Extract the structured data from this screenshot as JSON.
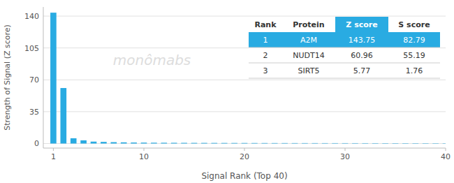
{
  "chart_data": {
    "type": "bar",
    "x_label": "Signal Rank (Top 40)",
    "y_label": "Strength of Signal (Z score)",
    "annotations": [
      "monômabs"
    ],
    "x": [
      1,
      2,
      3,
      4,
      5,
      6,
      7,
      8,
      9,
      10,
      11,
      12,
      13,
      14,
      15,
      16,
      17,
      18,
      19,
      20,
      21,
      22,
      23,
      24,
      25,
      26,
      27,
      28,
      29,
      30,
      31,
      32,
      33,
      34,
      35,
      36,
      37,
      38,
      39,
      40
    ],
    "values": [
      143.75,
      60.96,
      5.77,
      3.5,
      2.1,
      1.8,
      1.5,
      1.3,
      1.1,
      1.0,
      0.9,
      0.85,
      0.8,
      0.75,
      0.7,
      0.68,
      0.65,
      0.62,
      0.6,
      0.58,
      0.55,
      0.53,
      0.51,
      0.5,
      0.48,
      0.47,
      0.46,
      0.45,
      0.44,
      0.43,
      0.42,
      0.41,
      0.4,
      0.39,
      0.38,
      0.37,
      0.36,
      0.35,
      0.34,
      0.33
    ],
    "color": "#29ABE2",
    "xlim": [
      0,
      40
    ],
    "ylim": [
      -5,
      150
    ],
    "xticks": [
      1,
      10,
      20,
      30,
      40
    ],
    "yticks": [
      0,
      35,
      70,
      105,
      140
    ],
    "grid": true,
    "table": {
      "headers": [
        "Rank",
        "Protein",
        "Z score",
        "S score"
      ],
      "rows": [
        [
          "1",
          "A2M",
          "143.75",
          "82.79"
        ],
        [
          "2",
          "NUDT14",
          "60.96",
          "55.19"
        ],
        [
          "3",
          "SIRT5",
          "5.77",
          "1.76"
        ]
      ]
    }
  }
}
